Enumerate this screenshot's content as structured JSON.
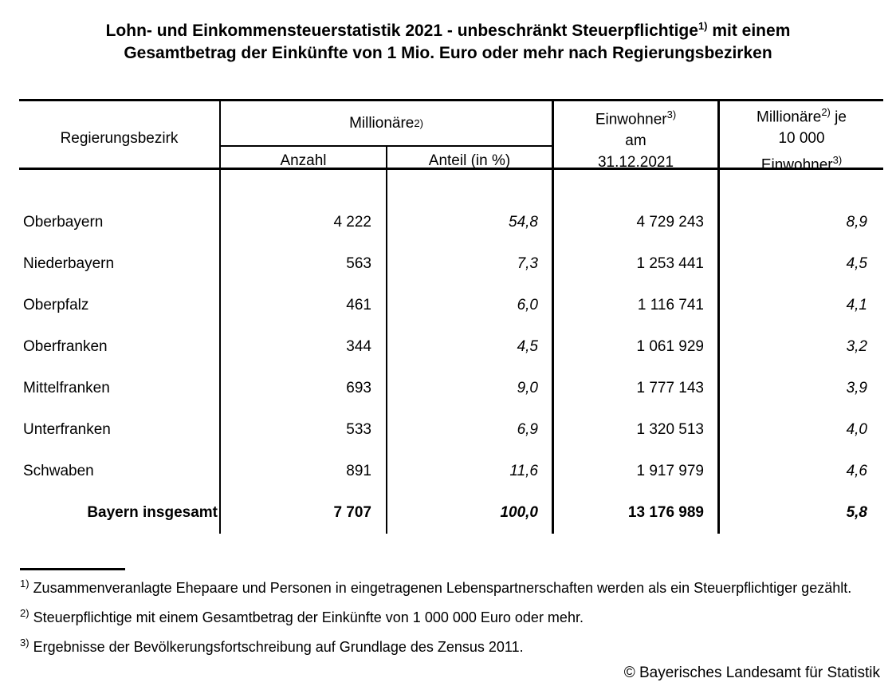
{
  "title": {
    "line1_main": "Lohn- und Einkommensteuerstatistik 2021 - unbeschränkt Steuerpflichtige",
    "line1_sup": "1)",
    "line1_tail": " mit einem",
    "line2": "Gesamtbetrag der Einkünfte von 1 Mio. Euro oder mehr nach Regierungsbezirken"
  },
  "table": {
    "header": {
      "region": "Regierungsbezirk",
      "millionaires_group": {
        "label": "Millionäre",
        "sup": "2)"
      },
      "anzahl": "Anzahl",
      "anteil": "Anteil (in %)",
      "einwohner": {
        "line1": "Einwohner",
        "line1_sup": "3)",
        "line2": "am",
        "line3": "31.12.2021"
      },
      "rate": {
        "line1": "Millionäre",
        "line1_sup": "2)",
        "line1_tail": " je",
        "line2": "10 000",
        "line3": "Einwohner",
        "line3_sup": "3)"
      }
    },
    "rows": [
      {
        "region": "Oberbayern",
        "anzahl": "4 222",
        "anteil": "54,8",
        "einwohner": "4 729 243",
        "rate": "8,9"
      },
      {
        "region": "Niederbayern",
        "anzahl": "563",
        "anteil": "7,3",
        "einwohner": "1 253 441",
        "rate": "4,5"
      },
      {
        "region": "Oberpfalz",
        "anzahl": "461",
        "anteil": "6,0",
        "einwohner": "1 116 741",
        "rate": "4,1"
      },
      {
        "region": "Oberfranken",
        "anzahl": "344",
        "anteil": "4,5",
        "einwohner": "1 061 929",
        "rate": "3,2"
      },
      {
        "region": "Mittelfranken",
        "anzahl": "693",
        "anteil": "9,0",
        "einwohner": "1 777 143",
        "rate": "3,9"
      },
      {
        "region": "Unterfranken",
        "anzahl": "533",
        "anteil": "6,9",
        "einwohner": "1 320 513",
        "rate": "4,0"
      },
      {
        "region": "Schwaben",
        "anzahl": "891",
        "anteil": "11,6",
        "einwohner": "1 917 979",
        "rate": "4,6"
      }
    ],
    "total_row": {
      "region": "Bayern insgesamt",
      "anzahl": "7 707",
      "anteil": "100,0",
      "einwohner": "13 176 989",
      "rate": "5,8"
    }
  },
  "footnotes": [
    {
      "sup": "1)",
      "text": "Zusammenveranlagte Ehepaare und Personen in eingetragenen Lebenspartnerschaften werden als ein Steuerpflichtiger gezählt."
    },
    {
      "sup": "2)",
      "text": "Steuerpflichtige mit einem Gesamtbetrag der Einkünfte von 1 000 000 Euro oder mehr."
    },
    {
      "sup": "3)",
      "text": "Ergebnisse der Bevölkerungsfortschreibung auf Grundlage des Zensus 2011."
    }
  ],
  "copyright": "© Bayerisches Landesamt für Statistik"
}
